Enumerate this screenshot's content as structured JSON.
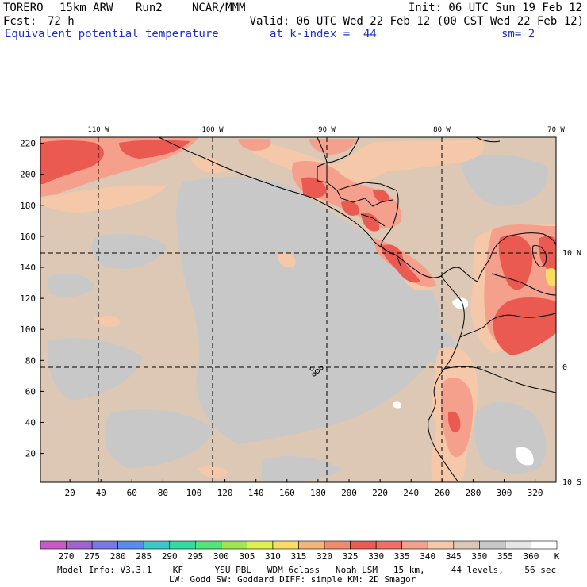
{
  "header": {
    "model": "TORERO",
    "resolution": "15km ARW",
    "run": "Run2",
    "org": "NCAR/MMM",
    "init": "Init: 06 UTC Sun 19 Feb 12",
    "fcst_label": "Fcst:",
    "fcst_value": "72 h",
    "valid": "Valid: 06 UTC Wed 22 Feb 12 (00 CST Wed 22 Feb 12)",
    "field": "Equivalent potential temperature",
    "level": "at k-index =  44",
    "smooth": "sm= 2"
  },
  "map": {
    "lon_labels": [
      "110 W",
      "100 W",
      "90 W",
      "80 W",
      "70 W"
    ],
    "lat_labels": [
      "10 N",
      "0",
      "10 S"
    ],
    "y_ticks": [
      "220",
      "200",
      "180",
      "160",
      "140",
      "120",
      "100",
      "80",
      "60",
      "40",
      "20"
    ],
    "x_ticks": [
      "20",
      "40",
      "60",
      "80",
      "100",
      "120",
      "140",
      "160",
      "180",
      "200",
      "220",
      "240",
      "260",
      "280",
      "300",
      "320"
    ],
    "land_color": "#cccccc",
    "border_color": "#000000"
  },
  "colorbar": {
    "labels": [
      "270",
      "275",
      "280",
      "285",
      "290",
      "295",
      "300",
      "305",
      "310",
      "315",
      "320",
      "325",
      "330",
      "335",
      "340",
      "345",
      "350",
      "355",
      "360"
    ],
    "unit": "K",
    "colors": [
      "#c85ac8",
      "#a064d2",
      "#7878e6",
      "#5a8cf0",
      "#3cc8c8",
      "#32dca0",
      "#50e678",
      "#a0e650",
      "#dcf050",
      "#fadc64",
      "#f5b478",
      "#f08c6e",
      "#eb5a50",
      "#f06e64",
      "#f5a08c",
      "#f5c8aa",
      "#dcc8b4",
      "#c8c8c8",
      "#e6e6e6",
      "#ffffff"
    ]
  },
  "footer": {
    "line1": "Model Info: V3.3.1    KF      YSU PBL   WDM 6class   Noah LSM   15 km,     44 levels,    56 sec",
    "line2": "LW: Godd SW: Goddard DIFF: simple KM: 2D Smagor"
  }
}
